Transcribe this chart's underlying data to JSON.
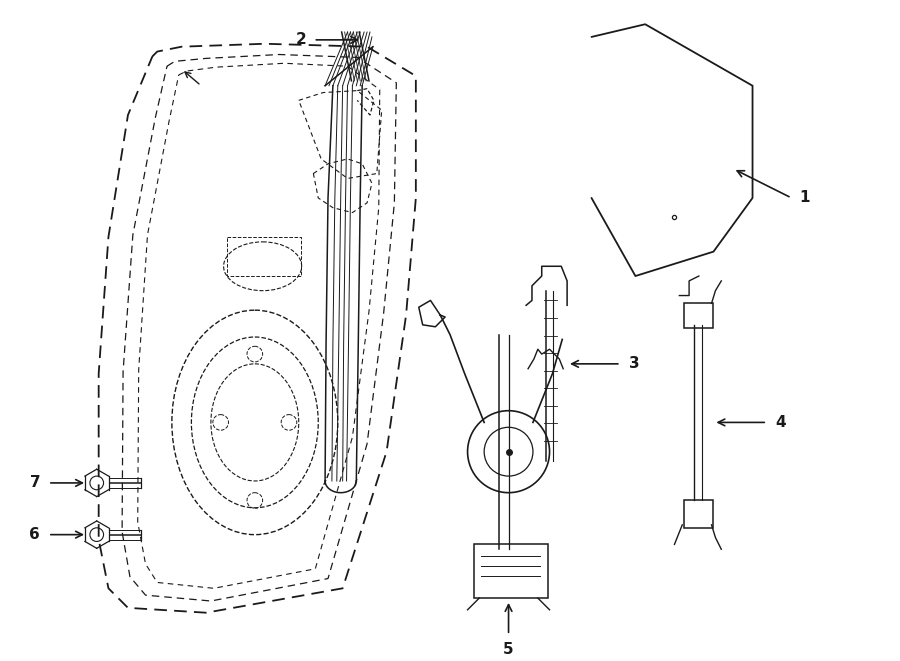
{
  "background_color": "#ffffff",
  "line_color": "#1a1a1a",
  "fig_width": 9.0,
  "fig_height": 6.61,
  "dpi": 100,
  "label_fontsize": 11
}
